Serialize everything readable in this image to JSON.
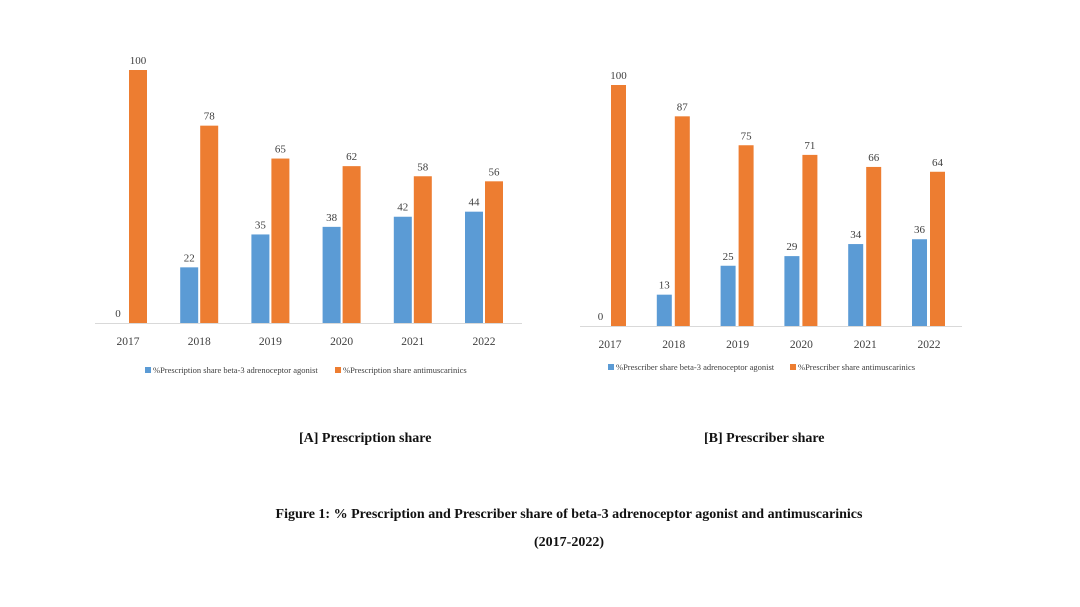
{
  "colors": {
    "beta3": "#5B9BD5",
    "antimuscarinics": "#ED7D31",
    "axis": "#D9D9D9",
    "text": "#404040"
  },
  "chart_data": [
    {
      "type": "bar",
      "panel_caption": "[A] Prescription share",
      "categories": [
        "2017",
        "2018",
        "2019",
        "2020",
        "2021",
        "2022"
      ],
      "series": [
        {
          "name": "%Prescription share beta-3 adrenoceptor agonist",
          "values": [
            0,
            22,
            35,
            38,
            42,
            44
          ],
          "color": "#5B9BD5"
        },
        {
          "name": "%Prescription share antimuscarinics",
          "values": [
            100,
            78,
            65,
            62,
            58,
            56
          ],
          "color": "#ED7D31"
        }
      ],
      "ylim": [
        0,
        100
      ],
      "grid": false,
      "data_labels": true,
      "legend_position": "bottom"
    },
    {
      "type": "bar",
      "panel_caption": "[B] Prescriber share",
      "categories": [
        "2017",
        "2018",
        "2019",
        "2020",
        "2021",
        "2022"
      ],
      "series": [
        {
          "name": "%Prescriber share beta-3 adrenoceptor agonist",
          "values": [
            0,
            13,
            25,
            29,
            34,
            36
          ],
          "color": "#5B9BD5"
        },
        {
          "name": "%Prescriber share antimuscarinics",
          "values": [
            100,
            87,
            75,
            71,
            66,
            64
          ],
          "color": "#ED7D31"
        }
      ],
      "ylim": [
        0,
        100
      ],
      "grid": false,
      "data_labels": true,
      "legend_position": "bottom"
    }
  ],
  "figure_caption": {
    "line1": "Figure 1: % Prescription and Prescriber share of beta-3 adrenoceptor agonist and antimuscarinics",
    "line2": "(2017-2022)"
  }
}
